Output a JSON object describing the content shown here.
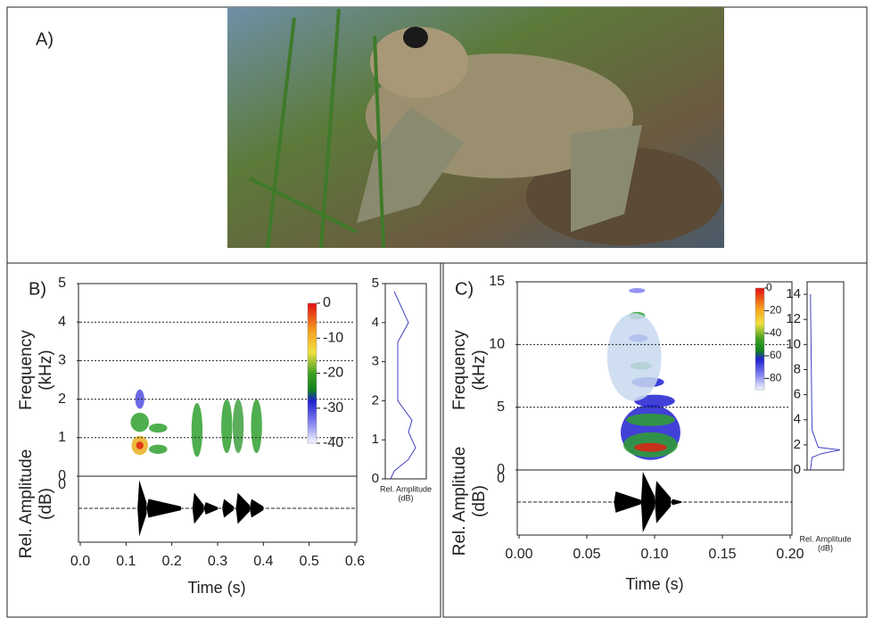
{
  "panel_a": {
    "label": "A)"
  },
  "chart_data": [
    {
      "type": "spectrogram",
      "panel": "B)",
      "ylabel": [
        "Frequency",
        "(kHz)"
      ],
      "amp_label": [
        "Rel. Amplitude",
        "(dB)"
      ],
      "amp_ticks": [
        0
      ],
      "xlabel": "Time (s)",
      "xlim": [
        0,
        0.6
      ],
      "xticks": [
        {
          "value": 0,
          "label": "0.0"
        },
        0.1,
        0.2,
        0.3,
        0.4,
        0.5,
        0.6
      ],
      "ylim": [
        0,
        5
      ],
      "yticks": [
        0,
        1,
        2,
        3,
        4,
        5
      ],
      "grid": true,
      "clim": [
        -40,
        0
      ],
      "cticks": [
        0,
        -10,
        -20,
        -30,
        -40
      ],
      "side_ylim": [
        0,
        5
      ],
      "side_yticks": [
        0,
        1,
        2,
        3,
        4,
        5
      ],
      "side_label": [
        "Rel. Amplitude",
        "(dB)"
      ]
    },
    {
      "type": "spectrogram",
      "panel": "C)",
      "ylabel": [
        "Frequency",
        "(kHz)"
      ],
      "amp_label": [
        "Rel. Amplitude",
        "(dB)"
      ],
      "amp_ticks": [
        0
      ],
      "xlabel": "Time (s)",
      "xlim": [
        0,
        0.2
      ],
      "xticks": [
        {
          "value": 0,
          "label": "0.00"
        },
        0.05,
        {
          "value": 0.1,
          "label": "0.10"
        },
        0.15,
        {
          "value": 0.2,
          "label": "0.20"
        }
      ],
      "ylim": [
        0,
        15
      ],
      "yticks": [
        0,
        5,
        10,
        15
      ],
      "grid": true,
      "clim": [
        -90,
        0
      ],
      "cticks": [
        0,
        -20,
        -40,
        -60,
        -80
      ],
      "side_ylim": [
        0,
        15
      ],
      "side_yticks": [
        0,
        2,
        4,
        6,
        8,
        10,
        12,
        14
      ],
      "side_label": [
        "Rel. Amplitude",
        "(dB)"
      ]
    }
  ]
}
